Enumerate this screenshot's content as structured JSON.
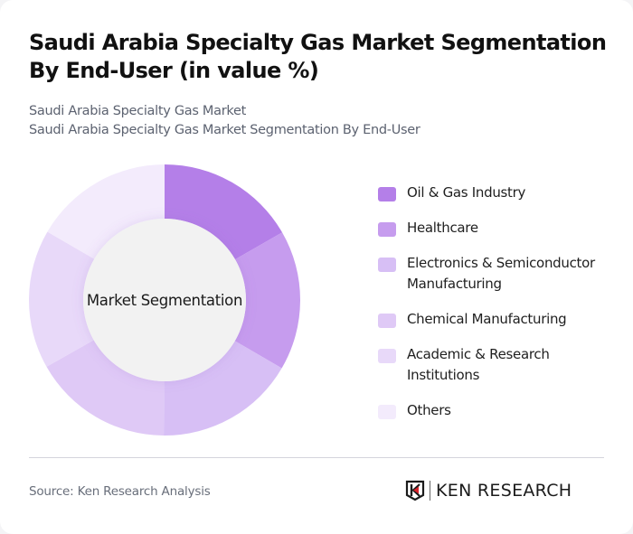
{
  "header": {
    "title": "Saudi Arabia Specialty Gas Market Segmentation By End-User (in value %)",
    "subtitle_line1": "Saudi Arabia Specialty Gas Market",
    "subtitle_line2": "Saudi Arabia Specialty Gas Market Segmentation By End-User"
  },
  "chart": {
    "center_label": "Market Segmentation"
  },
  "legend": [
    {
      "label": "Oil & Gas Industry",
      "color": "#b47fe8"
    },
    {
      "label": "Healthcare",
      "color": "#c69cee"
    },
    {
      "label": "Electronics & Semiconductor Manufacturing",
      "color": "#d7bff5"
    },
    {
      "label": "Chemical Manufacturing",
      "color": "#dfc9f6"
    },
    {
      "label": "Academic & Research Institutions",
      "color": "#e8d9f9"
    },
    {
      "label": "Others",
      "color": "#f3ebfc"
    }
  ],
  "footer": {
    "source": "Source: Ken Research Analysis",
    "logo_text": "KEN RESEARCH"
  },
  "chart_data": {
    "type": "pie",
    "subtype": "donut",
    "title": "Saudi Arabia Specialty Gas Market Segmentation By End-User (in value %)",
    "center_label": "Market Segmentation",
    "categories": [
      "Oil & Gas Industry",
      "Healthcare",
      "Electronics & Semiconductor Manufacturing",
      "Chemical Manufacturing",
      "Academic & Research Institutions",
      "Others"
    ],
    "values": [
      16.7,
      16.7,
      16.7,
      16.7,
      16.6,
      16.6
    ],
    "colors": [
      "#b47fe8",
      "#c69cee",
      "#d7bff5",
      "#dfc9f6",
      "#e8d9f9",
      "#f3ebfc"
    ],
    "legend_position": "right",
    "data_labels": false
  }
}
